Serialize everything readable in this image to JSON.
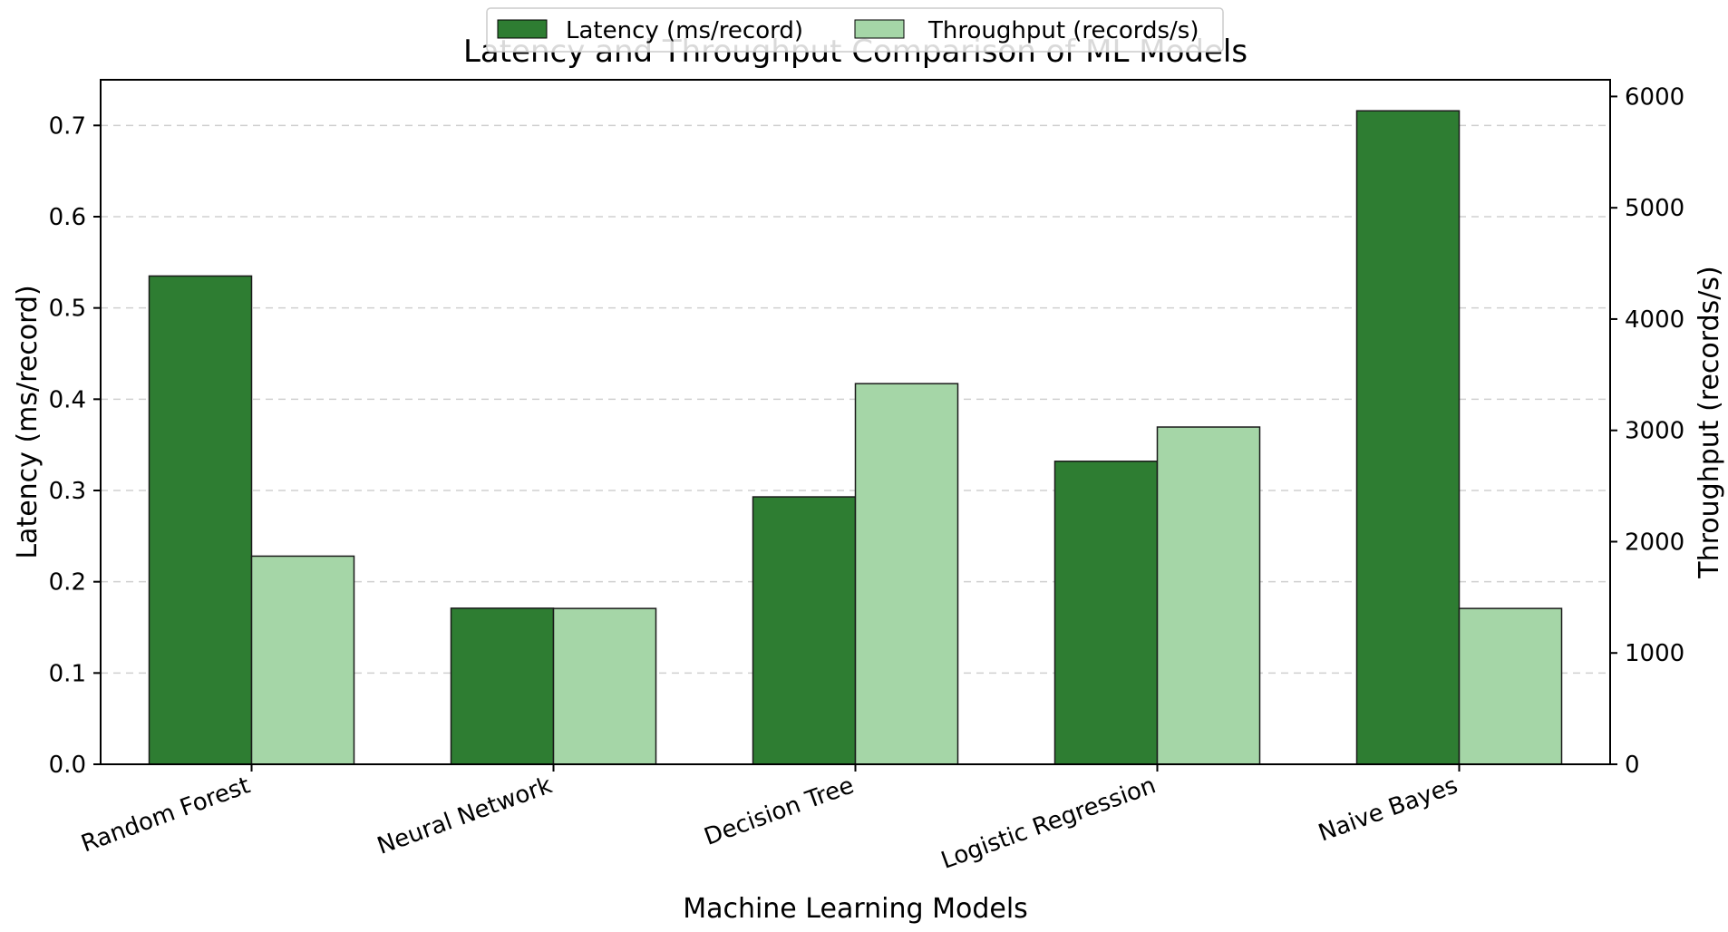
{
  "chart_data": {
    "type": "bar",
    "title": "Latency and Throughput Comparison of ML Models",
    "xlabel": "Machine Learning Models",
    "ylabel": "Latency (ms/record)",
    "y2label": "Throughput (records/s)",
    "categories": [
      "Random Forest",
      "Neural Network",
      "Decision Tree",
      "Logistic Regression",
      "Naive Bayes"
    ],
    "series": [
      {
        "name": "Latency (ms/record)",
        "axis": "left",
        "color": "#2e7d32",
        "values": [
          0.535,
          0.171,
          0.293,
          0.332,
          0.716
        ]
      },
      {
        "name": "Throughput (records/s)",
        "axis": "right",
        "color": "#a5d6a7",
        "values": [
          1870,
          1400,
          3420,
          3030,
          1400
        ]
      }
    ],
    "ylim": [
      0,
      0.75
    ],
    "y2lim": [
      0,
      6150
    ],
    "yticks": [
      "0.0",
      "0.1",
      "0.2",
      "0.3",
      "0.4",
      "0.5",
      "0.6",
      "0.7"
    ],
    "ytick_values": [
      0,
      0.1,
      0.2,
      0.3,
      0.4,
      0.5,
      0.6,
      0.7
    ],
    "y2ticks": [
      "0",
      "1000",
      "2000",
      "3000",
      "4000",
      "5000",
      "6000"
    ],
    "y2tick_values": [
      0,
      1000,
      2000,
      3000,
      4000,
      5000,
      6000
    ],
    "grid": true,
    "legend_position": "top-center",
    "x_tick_rotation": 20
  }
}
